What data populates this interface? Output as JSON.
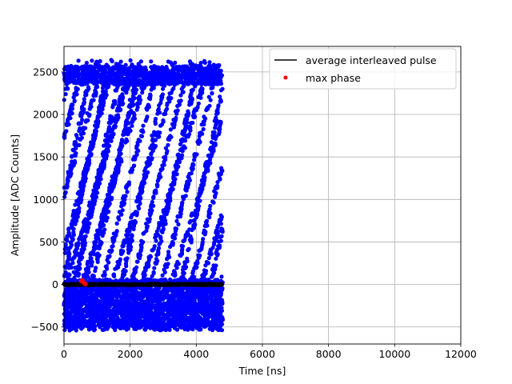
{
  "chart_data": {
    "type": "scatter",
    "title": "",
    "xlabel": "Time [ns]",
    "ylabel": "Amplitude [ADC Counts]",
    "xlim": [
      0,
      12000
    ],
    "ylim": [
      -700,
      2800
    ],
    "xticks": [
      0,
      2000,
      4000,
      6000,
      8000,
      10000,
      12000
    ],
    "xtick_labels": [
      "0",
      "2000",
      "4000",
      "6000",
      "8000",
      "10000",
      "12000"
    ],
    "yticks": [
      -500,
      0,
      500,
      1000,
      1500,
      2000,
      2500
    ],
    "ytick_labels": [
      "−500",
      "0",
      "500",
      "1000",
      "1500",
      "2000",
      "2500"
    ],
    "grid": true,
    "legend_position": "top-right",
    "legend": [
      {
        "label": "average interleaved pulse",
        "marker": "line",
        "color": "#000000"
      },
      {
        "label": "max phase",
        "marker": "dot",
        "color": "#ff0000"
      }
    ],
    "series": [
      {
        "color": "#0000ff",
        "marker": "dot",
        "x_range": [
          0,
          4800
        ],
        "bands": [
          {
            "y_range": [
              -540,
              80
            ],
            "density": "dense"
          },
          {
            "y_range": [
              80,
              2350
            ],
            "density": "sparse_diagonal_stripes"
          },
          {
            "y_range": [
              2350,
              2650
            ],
            "density": "dense"
          }
        ],
        "max_value": 2640,
        "min_value": -540
      },
      {
        "name": "average interleaved pulse",
        "color": "#000000",
        "marker": "dot",
        "x_range": [
          0,
          4800
        ],
        "y_value": 0
      },
      {
        "name": "max phase",
        "color": "#ff0000",
        "marker": "dot",
        "points": [
          {
            "x": 520,
            "y": 40
          },
          {
            "x": 560,
            "y": 50
          },
          {
            "x": 600,
            "y": 20
          },
          {
            "x": 650,
            "y": 5
          }
        ]
      }
    ]
  }
}
